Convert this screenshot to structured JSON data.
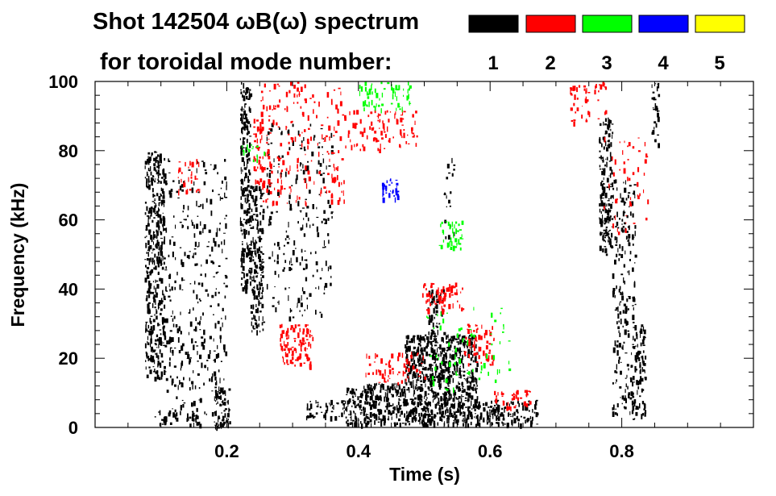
{
  "chart_data": {
    "type": "heatmap",
    "title_line1": "Shot 142504 ωB(ω) spectrum",
    "title_line2": "for toroidal mode number:",
    "xlabel": "Time (s)",
    "ylabel": "Frequency (kHz)",
    "xlim": [
      0.0,
      1.0
    ],
    "ylim": [
      0,
      100
    ],
    "x_ticks": [
      0.2,
      0.4,
      0.6,
      0.8
    ],
    "x_tick_labels": [
      "0.2",
      "0.4",
      "0.6",
      "0.8"
    ],
    "y_ticks": [
      0,
      20,
      40,
      60,
      80,
      100
    ],
    "y_tick_labels": [
      "0",
      "20",
      "40",
      "60",
      "80",
      "100"
    ],
    "legend": [
      {
        "label": "1",
        "color": "#000000"
      },
      {
        "label": "2",
        "color": "#ff0000"
      },
      {
        "label": "3",
        "color": "#00ff00"
      },
      {
        "label": "4",
        "color": "#0000ff"
      },
      {
        "label": "5",
        "color": "#ffff00"
      }
    ],
    "grid": false,
    "regions": [
      {
        "mode": 1,
        "t": [
          0.075,
          0.105
        ],
        "f": [
          14,
          80
        ],
        "density": 0.55
      },
      {
        "mode": 1,
        "t": [
          0.105,
          0.2
        ],
        "f": [
          4,
          78
        ],
        "density": 0.12
      },
      {
        "mode": 1,
        "t": [
          0.18,
          0.205
        ],
        "f": [
          0,
          12
        ],
        "density": 0.5
      },
      {
        "mode": 1,
        "t": [
          0.22,
          0.235
        ],
        "f": [
          40,
          100
        ],
        "density": 0.6
      },
      {
        "mode": 1,
        "t": [
          0.235,
          0.255
        ],
        "f": [
          28,
          70
        ],
        "density": 0.55
      },
      {
        "mode": 1,
        "t": [
          0.26,
          0.36
        ],
        "f": [
          32,
          88
        ],
        "density": 0.1
      },
      {
        "mode": 1,
        "t": [
          0.09,
          0.16
        ],
        "f": [
          1,
          5
        ],
        "density": 0.4
      },
      {
        "mode": 1,
        "t": [
          0.32,
          0.38
        ],
        "f": [
          3,
          8
        ],
        "density": 0.4
      },
      {
        "mode": 1,
        "t": [
          0.38,
          0.47
        ],
        "f": [
          1,
          13
        ],
        "density": 0.65
      },
      {
        "mode": 1,
        "t": [
          0.47,
          0.58
        ],
        "f": [
          1,
          27
        ],
        "density": 0.7
      },
      {
        "mode": 1,
        "t": [
          0.58,
          0.67
        ],
        "f": [
          1,
          8
        ],
        "density": 0.55
      },
      {
        "mode": 1,
        "t": [
          0.505,
          0.53
        ],
        "f": [
          27,
          40
        ],
        "density": 0.4
      },
      {
        "mode": 1,
        "t": [
          0.525,
          0.545
        ],
        "f": [
          55,
          78
        ],
        "density": 0.12
      },
      {
        "mode": 1,
        "t": [
          0.765,
          0.785
        ],
        "f": [
          50,
          90
        ],
        "density": 0.55
      },
      {
        "mode": 1,
        "t": [
          0.785,
          0.82
        ],
        "f": [
          4,
          72
        ],
        "density": 0.22
      },
      {
        "mode": 1,
        "t": [
          0.815,
          0.835
        ],
        "f": [
          2,
          30
        ],
        "density": 0.4
      },
      {
        "mode": 1,
        "t": [
          0.845,
          0.855
        ],
        "f": [
          82,
          100
        ],
        "density": 0.45
      },
      {
        "mode": 2,
        "t": [
          0.28,
          0.33
        ],
        "f": [
          18,
          30
        ],
        "density": 0.45
      },
      {
        "mode": 2,
        "t": [
          0.25,
          0.38
        ],
        "f": [
          65,
          100
        ],
        "density": 0.12
      },
      {
        "mode": 2,
        "t": [
          0.38,
          0.49
        ],
        "f": [
          80,
          92
        ],
        "density": 0.18
      },
      {
        "mode": 2,
        "t": [
          0.24,
          0.255
        ],
        "f": [
          70,
          90
        ],
        "density": 0.4
      },
      {
        "mode": 2,
        "t": [
          0.41,
          0.5
        ],
        "f": [
          13,
          22
        ],
        "density": 0.2
      },
      {
        "mode": 2,
        "t": [
          0.495,
          0.56
        ],
        "f": [
          34,
          42
        ],
        "density": 0.35
      },
      {
        "mode": 2,
        "t": [
          0.56,
          0.605
        ],
        "f": [
          18,
          30
        ],
        "density": 0.3
      },
      {
        "mode": 2,
        "t": [
          0.605,
          0.66
        ],
        "f": [
          6,
          11
        ],
        "density": 0.35
      },
      {
        "mode": 2,
        "t": [
          0.12,
          0.16
        ],
        "f": [
          68,
          78
        ],
        "density": 0.2
      },
      {
        "mode": 2,
        "t": [
          0.72,
          0.775
        ],
        "f": [
          88,
          100
        ],
        "density": 0.2
      },
      {
        "mode": 2,
        "t": [
          0.77,
          0.84
        ],
        "f": [
          55,
          85
        ],
        "density": 0.06
      },
      {
        "mode": 3,
        "t": [
          0.4,
          0.48
        ],
        "f": [
          92,
          100
        ],
        "density": 0.25
      },
      {
        "mode": 3,
        "t": [
          0.52,
          0.56
        ],
        "f": [
          52,
          60
        ],
        "density": 0.3
      },
      {
        "mode": 3,
        "t": [
          0.5,
          0.63
        ],
        "f": [
          10,
          35
        ],
        "density": 0.05
      },
      {
        "mode": 3,
        "t": [
          0.22,
          0.26
        ],
        "f": [
          77,
          82
        ],
        "density": 0.2
      },
      {
        "mode": 4,
        "t": [
          0.435,
          0.46
        ],
        "f": [
          66,
          72
        ],
        "density": 0.55
      }
    ]
  }
}
